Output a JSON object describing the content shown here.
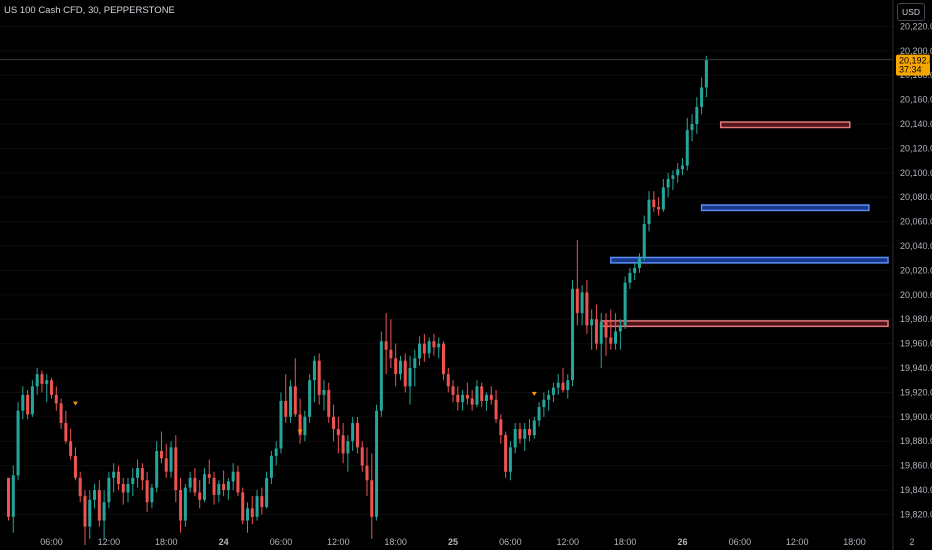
{
  "header": {
    "title": "US 100 Cash CFD, 30, PEPPERSTONE"
  },
  "currency_button": "USD",
  "price_tag": {
    "price": "20,192.8",
    "countdown": "37:34"
  },
  "colors": {
    "up": "#26a69a",
    "down": "#ef5350",
    "background": "#000000",
    "zone_blue": "#2962ff",
    "zone_red": "#b22833",
    "price_tag": "#f7a600",
    "marker": "#ff9800"
  },
  "chart_data": {
    "type": "candlestick",
    "instrument": "US 100 Cash CFD",
    "timeframe": "30",
    "source": "PEPPERSTONE",
    "ylim": [
      19810,
      20222
    ],
    "y_ticks": [
      20220,
      20200,
      20180,
      20160,
      20140,
      20120,
      20100,
      20080,
      20060,
      20040,
      20020,
      20000,
      19980,
      19960,
      19940,
      19920,
      19900,
      19880,
      19860,
      19840,
      19820
    ],
    "y_tick_labels": [
      "20,220.0",
      "20,200.0",
      "20,180.0",
      "20,160.0",
      "20,140.0",
      "20,120.0",
      "20,100.0",
      "20,080.0",
      "20,060.0",
      "20,040.0",
      "20,020.0",
      "20,000.0",
      "19,980.0",
      "19,960.0",
      "19,940.0",
      "19,920.0",
      "19,900.0",
      "19,880.0",
      "19,860.0",
      "19,840.0",
      "19,820.0"
    ],
    "x_tick_labels": [
      {
        "label": "06:00",
        "bar": 9,
        "bold": false
      },
      {
        "label": "12:00",
        "bar": 21,
        "bold": false
      },
      {
        "label": "18:00",
        "bar": 33,
        "bold": false
      },
      {
        "label": "24",
        "bar": 45,
        "bold": true
      },
      {
        "label": "06:00",
        "bar": 57,
        "bold": false
      },
      {
        "label": "12:00",
        "bar": 69,
        "bold": false
      },
      {
        "label": "18:00",
        "bar": 81,
        "bold": false
      },
      {
        "label": "25",
        "bar": 93,
        "bold": true
      },
      {
        "label": "06:00",
        "bar": 105,
        "bold": false
      },
      {
        "label": "12:00",
        "bar": 117,
        "bold": false
      },
      {
        "label": "18:00",
        "bar": 129,
        "bold": false
      },
      {
        "label": "26",
        "bar": 141,
        "bold": true
      },
      {
        "label": "06:00",
        "bar": 153,
        "bold": false
      },
      {
        "label": "12:00",
        "bar": 165,
        "bold": false
      },
      {
        "label": "18:00",
        "bar": 177,
        "bold": false
      },
      {
        "label": "2",
        "bar": 189,
        "bold": false
      }
    ],
    "current_price": 20192.8,
    "zones": [
      {
        "color": "red",
        "top": 20140,
        "bottom": 20138,
        "start_bar": 149,
        "end_bar": 176
      },
      {
        "color": "blue",
        "top": 20072,
        "bottom": 20070,
        "start_bar": 145,
        "end_bar": 180
      },
      {
        "color": "blue",
        "top": 20029,
        "bottom": 20027,
        "start_bar": 126,
        "end_bar": 184
      },
      {
        "color": "red",
        "top": 19977,
        "bottom": 19975,
        "start_bar": 124,
        "end_bar": 184
      }
    ],
    "markers": [
      {
        "bar": 14,
        "price": 19910
      },
      {
        "bar": 61,
        "price": 19887
      },
      {
        "bar": 110,
        "price": 19918
      }
    ],
    "candles": [
      [
        19850,
        19850,
        19815,
        19818
      ],
      [
        19818,
        19860,
        19805,
        19852
      ],
      [
        19852,
        19912,
        19848,
        19905
      ],
      [
        19905,
        19925,
        19898,
        19918
      ],
      [
        19918,
        19922,
        19898,
        19902
      ],
      [
        19902,
        19930,
        19900,
        19925
      ],
      [
        19925,
        19940,
        19918,
        19935
      ],
      [
        19935,
        19938,
        19920,
        19927
      ],
      [
        19927,
        19935,
        19912,
        19930
      ],
      [
        19930,
        19932,
        19915,
        19918
      ],
      [
        19918,
        19925,
        19905,
        19911
      ],
      [
        19911,
        19915,
        19890,
        19895
      ],
      [
        19895,
        19905,
        19878,
        19880
      ],
      [
        19880,
        19890,
        19865,
        19868
      ],
      [
        19868,
        19875,
        19848,
        19850
      ],
      [
        19850,
        19855,
        19830,
        19835
      ],
      [
        19835,
        19840,
        19795,
        19810
      ],
      [
        19810,
        19840,
        19800,
        19832
      ],
      [
        19832,
        19845,
        19825,
        19840
      ],
      [
        19840,
        19848,
        19810,
        19815
      ],
      [
        19815,
        19840,
        19800,
        19830
      ],
      [
        19830,
        19855,
        19825,
        19850
      ],
      [
        19850,
        19862,
        19838,
        19855
      ],
      [
        19855,
        19860,
        19840,
        19845
      ],
      [
        19845,
        19850,
        19828,
        19838
      ],
      [
        19838,
        19850,
        19830,
        19845
      ],
      [
        19845,
        19858,
        19835,
        19850
      ],
      [
        19850,
        19865,
        19842,
        19858
      ],
      [
        19858,
        19862,
        19840,
        19848
      ],
      [
        19848,
        19855,
        19822,
        19830
      ],
      [
        19830,
        19845,
        19825,
        19842
      ],
      [
        19842,
        19880,
        19838,
        19872
      ],
      [
        19872,
        19888,
        19862,
        19866
      ],
      [
        19866,
        19878,
        19850,
        19855
      ],
      [
        19855,
        19880,
        19850,
        19875
      ],
      [
        19875,
        19885,
        19830,
        19840
      ],
      [
        19840,
        19850,
        19805,
        19815
      ],
      [
        19815,
        19845,
        19810,
        19842
      ],
      [
        19842,
        19855,
        19838,
        19850
      ],
      [
        19850,
        19858,
        19835,
        19838
      ],
      [
        19838,
        19848,
        19825,
        19832
      ],
      [
        19832,
        19858,
        19830,
        19853
      ],
      [
        19853,
        19865,
        19845,
        19850
      ],
      [
        19850,
        19855,
        19828,
        19836
      ],
      [
        19836,
        19848,
        19830,
        19845
      ],
      [
        19845,
        19856,
        19835,
        19840
      ],
      [
        19840,
        19850,
        19832,
        19847
      ],
      [
        19847,
        19862,
        19840,
        19855
      ],
      [
        19855,
        19860,
        19835,
        19838
      ],
      [
        19838,
        19842,
        19812,
        19815
      ],
      [
        19815,
        19830,
        19805,
        19825
      ],
      [
        19825,
        19835,
        19812,
        19818
      ],
      [
        19818,
        19840,
        19815,
        19835
      ],
      [
        19835,
        19842,
        19820,
        19826
      ],
      [
        19826,
        19855,
        19825,
        19850
      ],
      [
        19850,
        19872,
        19845,
        19868
      ],
      [
        19868,
        19880,
        19860,
        19874
      ],
      [
        19874,
        19920,
        19870,
        19913
      ],
      [
        19913,
        19935,
        19895,
        19900
      ],
      [
        19900,
        19930,
        19895,
        19925
      ],
      [
        19925,
        19948,
        19900,
        19902
      ],
      [
        19902,
        19915,
        19878,
        19885
      ],
      [
        19885,
        19905,
        19880,
        19900
      ],
      [
        19900,
        19935,
        19895,
        19930
      ],
      [
        19930,
        19950,
        19912,
        19946
      ],
      [
        19946,
        19952,
        19910,
        19918
      ],
      [
        19918,
        19930,
        19905,
        19922
      ],
      [
        19922,
        19928,
        19895,
        19900
      ],
      [
        19900,
        19910,
        19880,
        19890
      ],
      [
        19890,
        19900,
        19870,
        19885
      ],
      [
        19885,
        19895,
        19862,
        19870
      ],
      [
        19870,
        19885,
        19855,
        19880
      ],
      [
        19880,
        19900,
        19872,
        19895
      ],
      [
        19895,
        19900,
        19870,
        19875
      ],
      [
        19875,
        19880,
        19855,
        19860
      ],
      [
        19860,
        19875,
        19835,
        19848
      ],
      [
        19848,
        19870,
        19800,
        19818
      ],
      [
        19818,
        19910,
        19815,
        19905
      ],
      [
        19905,
        19970,
        19900,
        19962
      ],
      [
        19962,
        19985,
        19935,
        19955
      ],
      [
        19955,
        19980,
        19940,
        19948
      ],
      [
        19948,
        19960,
        19925,
        19935
      ],
      [
        19935,
        19950,
        19930,
        19946
      ],
      [
        19946,
        19952,
        19920,
        19925
      ],
      [
        19925,
        19950,
        19910,
        19940
      ],
      [
        19940,
        19955,
        19925,
        19948
      ],
      [
        19948,
        19966,
        19942,
        19960
      ],
      [
        19960,
        19968,
        19945,
        19952
      ],
      [
        19952,
        19965,
        19948,
        19962
      ],
      [
        19962,
        19968,
        19950,
        19957
      ],
      [
        19957,
        19965,
        19948,
        19960
      ],
      [
        19960,
        19962,
        19930,
        19935
      ],
      [
        19935,
        19940,
        19920,
        19925
      ],
      [
        19925,
        19930,
        19912,
        19918
      ],
      [
        19918,
        19925,
        19905,
        19912
      ],
      [
        19912,
        19922,
        19905,
        19918
      ],
      [
        19918,
        19928,
        19910,
        19915
      ],
      [
        19915,
        19922,
        19905,
        19910
      ],
      [
        19910,
        19930,
        19908,
        19925
      ],
      [
        19925,
        19928,
        19908,
        19913
      ],
      [
        19913,
        19920,
        19905,
        19918
      ],
      [
        19918,
        19925,
        19910,
        19914
      ],
      [
        19914,
        19922,
        19895,
        19898
      ],
      [
        19898,
        19902,
        19878,
        19885
      ],
      [
        19885,
        19888,
        19850,
        19855
      ],
      [
        19855,
        19880,
        19848,
        19875
      ],
      [
        19875,
        19895,
        19870,
        19890
      ],
      [
        19890,
        19895,
        19878,
        19882
      ],
      [
        19882,
        19895,
        19872,
        19890
      ],
      [
        19890,
        19898,
        19880,
        19885
      ],
      [
        19885,
        19900,
        19882,
        19897
      ],
      [
        19897,
        19912,
        19892,
        19908
      ],
      [
        19908,
        19920,
        19900,
        19914
      ],
      [
        19914,
        19922,
        19905,
        19918
      ],
      [
        19918,
        19928,
        19912,
        19924
      ],
      [
        19924,
        19935,
        19918,
        19928
      ],
      [
        19928,
        19940,
        19920,
        19922
      ],
      [
        19922,
        19935,
        19915,
        19930
      ],
      [
        19930,
        20012,
        19925,
        20005
      ],
      [
        20005,
        20045,
        19975,
        19985
      ],
      [
        19985,
        20008,
        19975,
        20002
      ],
      [
        20002,
        20012,
        19968,
        19975
      ],
      [
        19975,
        19988,
        19955,
        19980
      ],
      [
        19980,
        19992,
        19955,
        19960
      ],
      [
        19960,
        19985,
        19940,
        19978
      ],
      [
        19978,
        19985,
        19950,
        19965
      ],
      [
        19965,
        19988,
        19955,
        19960
      ],
      [
        19960,
        19985,
        19955,
        19970
      ],
      [
        19970,
        19980,
        19955,
        19975
      ],
      [
        19975,
        20015,
        19972,
        20010
      ],
      [
        20010,
        20022,
        20005,
        20018
      ],
      [
        20018,
        20026,
        20012,
        20022
      ],
      [
        20022,
        20034,
        20018,
        20030
      ],
      [
        20030,
        20065,
        20028,
        20058
      ],
      [
        20058,
        20085,
        20052,
        20078
      ],
      [
        20078,
        20085,
        20068,
        20072
      ],
      [
        20072,
        20080,
        20065,
        20070
      ],
      [
        20070,
        20095,
        20068,
        20088
      ],
      [
        20088,
        20100,
        20080,
        20095
      ],
      [
        20095,
        20102,
        20086,
        20098
      ],
      [
        20098,
        20108,
        20092,
        20103
      ],
      [
        20103,
        20112,
        20098,
        20106
      ],
      [
        20106,
        20145,
        20102,
        20135
      ],
      [
        20135,
        20148,
        20126,
        20140
      ],
      [
        20140,
        20162,
        20132,
        20154
      ],
      [
        20154,
        20178,
        20148,
        20170
      ],
      [
        20170,
        20196,
        20162,
        20192.8
      ]
    ]
  }
}
